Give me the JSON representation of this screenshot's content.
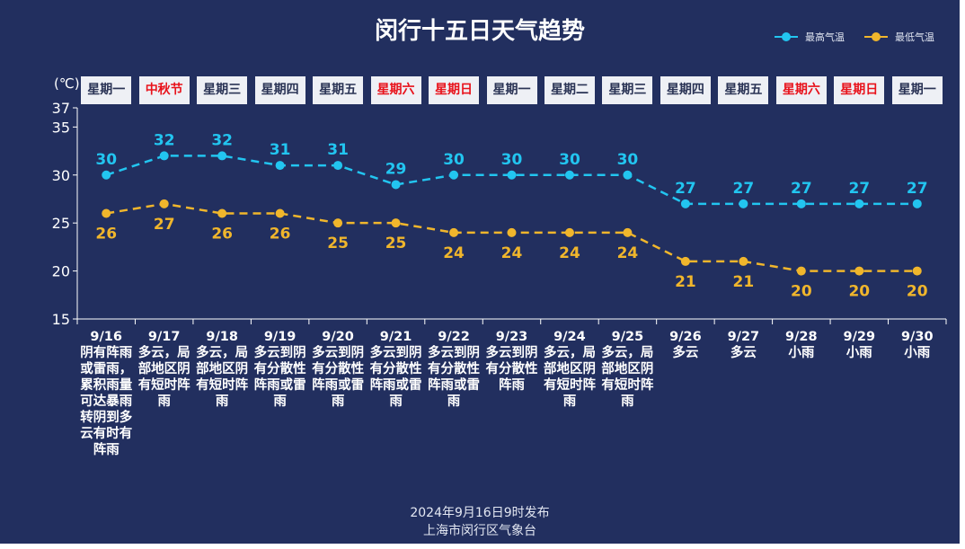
{
  "chart_data": {
    "type": "line",
    "title": "闵行十五日天气趋势",
    "ylabel": "(℃)",
    "ylim": [
      15,
      37
    ],
    "yticks": [
      15,
      20,
      25,
      30,
      35,
      37
    ],
    "legend_position": "top-right",
    "categories": [
      "9/16",
      "9/17",
      "9/18",
      "9/19",
      "9/20",
      "9/21",
      "9/22",
      "9/23",
      "9/24",
      "9/25",
      "9/26",
      "9/27",
      "9/28",
      "9/29",
      "9/30"
    ],
    "weekdays": [
      "星期一",
      "中秋节",
      "星期三",
      "星期四",
      "星期五",
      "星期六",
      "星期日",
      "星期一",
      "星期二",
      "星期三",
      "星期四",
      "星期五",
      "星期六",
      "星期日",
      "星期一"
    ],
    "weekday_highlight": [
      false,
      true,
      false,
      false,
      false,
      true,
      true,
      false,
      false,
      false,
      false,
      false,
      true,
      true,
      false
    ],
    "weather": [
      "阴有阵雨或雷雨，累积雨量可达暴雨转阴到多云有时有阵雨",
      "多云，局部地区阴有短时阵雨",
      "多云，局部地区阴有短时阵雨",
      "多云到阴有分散性阵雨或雷雨",
      "多云到阴有分散性阵雨或雷雨",
      "多云到阴有分散性阵雨或雷雨",
      "多云到阴有分散性阵雨或雷雨",
      "多云到阴有分散性阵雨",
      "多云，局部地区阴有短时阵雨",
      "多云，局部地区阴有短时阵雨",
      "多云",
      "多云",
      "小雨",
      "小雨",
      "小雨"
    ],
    "series": [
      {
        "name": "最高气温",
        "color": "#22c5f0",
        "values": [
          30,
          32,
          32,
          31,
          31,
          29,
          30,
          30,
          30,
          30,
          27,
          27,
          27,
          27,
          27
        ]
      },
      {
        "name": "最低气温",
        "color": "#f0b62c",
        "values": [
          26,
          27,
          26,
          26,
          25,
          25,
          24,
          24,
          24,
          24,
          21,
          21,
          20,
          20,
          20
        ]
      }
    ]
  },
  "footer": {
    "published": "2024年9月16日9时发布",
    "source": "上海市闵行区气象台"
  },
  "colors": {
    "background": "#222f5f",
    "holiday_text": "#e8121b"
  }
}
